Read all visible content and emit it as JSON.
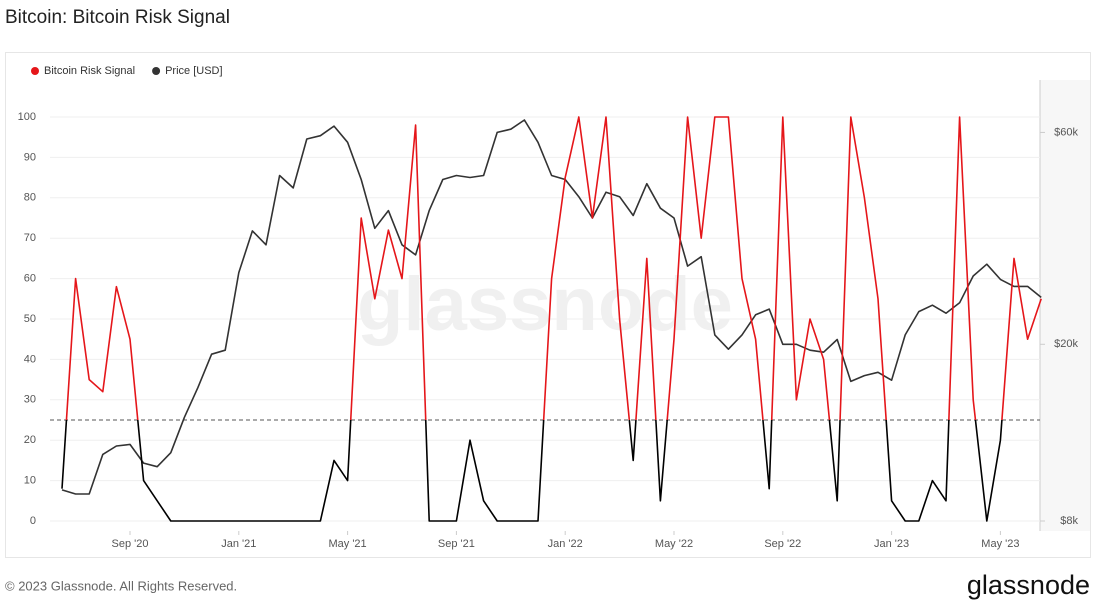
{
  "chart_data": {
    "type": "line",
    "title": "Bitcoin: Bitcoin Risk Signal",
    "watermark": "glassnode",
    "footer": {
      "copyright": "© 2023 Glassnode. All Rights Reserved.",
      "logo": "glassnode"
    },
    "categories": [
      null,
      null,
      null,
      null,
      null,
      "Sep '20",
      null,
      null,
      null,
      null,
      null,
      null,
      null,
      "Jan '21",
      null,
      null,
      null,
      null,
      null,
      null,
      null,
      "May '21",
      null,
      null,
      null,
      null,
      null,
      null,
      null,
      "Sep '21",
      null,
      null,
      null,
      null,
      null,
      null,
      null,
      "Jan '22",
      null,
      null,
      null,
      null,
      null,
      null,
      null,
      "May '22",
      null,
      null,
      null,
      null,
      null,
      null,
      null,
      "Sep '22",
      null,
      null,
      null,
      null,
      null,
      null,
      null,
      "Jan '23",
      null,
      null,
      null,
      null,
      null,
      null,
      null,
      "May '23",
      null,
      null,
      null
    ],
    "series": [
      {
        "name": "Bitcoin Risk Signal",
        "color": "#e5161a",
        "below_color": "#000000",
        "values": [
          8,
          60,
          35,
          32,
          58,
          45,
          10,
          5,
          0,
          0,
          0,
          0,
          0,
          0,
          0,
          0,
          0,
          0,
          0,
          0,
          15,
          10,
          75,
          55,
          72,
          60,
          98,
          0,
          0,
          0,
          20,
          5,
          0,
          0,
          0,
          0,
          60,
          85,
          100,
          75,
          100,
          50,
          15,
          65,
          5,
          45,
          100,
          70,
          100,
          100,
          60,
          45,
          8,
          100,
          30,
          50,
          40,
          5,
          100,
          80,
          55,
          5,
          0,
          0,
          10,
          5,
          100,
          30,
          0,
          20,
          65,
          45,
          55
        ]
      },
      {
        "name": "Price [USD]",
        "color": "#333333",
        "axis": "y2",
        "values": [
          9400,
          9200,
          9200,
          11300,
          11800,
          11900,
          10800,
          10600,
          11400,
          13700,
          16000,
          19000,
          19400,
          29000,
          36000,
          33500,
          48000,
          45000,
          58000,
          59000,
          62000,
          57000,
          47000,
          36500,
          40000,
          33500,
          31800,
          40000,
          47000,
          48000,
          47500,
          48000,
          60000,
          61000,
          64000,
          57000,
          48000,
          47000,
          43000,
          38500,
          44000,
          43000,
          39000,
          46000,
          40500,
          38500,
          30000,
          31500,
          21000,
          19500,
          21000,
          23300,
          24000,
          20000,
          20000,
          19400,
          19200,
          20500,
          16500,
          17000,
          17300,
          16600,
          21000,
          23700,
          24500,
          23500,
          24800,
          28500,
          30300,
          28000,
          27000,
          27000,
          25500
        ]
      }
    ],
    "threshold": 25,
    "ylim": [
      0,
      100
    ],
    "yticks": [
      0,
      10,
      20,
      30,
      40,
      50,
      60,
      70,
      80,
      90,
      100
    ],
    "y2lim": [
      8000,
      65000
    ],
    "y2log": true,
    "y2ticks": [
      {
        "value": 8000,
        "label": "$8k"
      },
      {
        "value": 20000,
        "label": "$20k"
      },
      {
        "value": 60000,
        "label": "$60k"
      }
    ],
    "grid": true
  }
}
